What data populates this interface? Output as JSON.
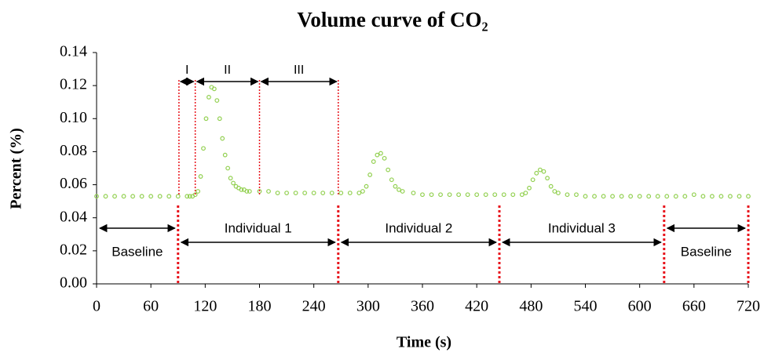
{
  "chart_data": {
    "type": "scatter",
    "title": "Volume curve of CO₂",
    "x_label": "Time (s)",
    "y_label": "Percent (%)",
    "color": "#92d050",
    "xlim": [
      0,
      720
    ],
    "xticks": [
      0,
      60,
      120,
      180,
      240,
      300,
      360,
      420,
      480,
      540,
      600,
      660,
      720
    ],
    "ylim": [
      0,
      0.14
    ],
    "yticks": [
      {
        "value": 0,
        "label": "0.00"
      },
      0.02,
      0.04,
      0.06,
      0.08,
      {
        "value": 0.1,
        "label": "0.10"
      },
      0.12,
      0.14
    ],
    "x": [
      0,
      10,
      20,
      30,
      40,
      50,
      60,
      70,
      80,
      90,
      100,
      103,
      106,
      109,
      112,
      115,
      118,
      121,
      124,
      127,
      130,
      133,
      136,
      139,
      142,
      145,
      148,
      151,
      154,
      157,
      160,
      163,
      166,
      169,
      180,
      190,
      200,
      210,
      220,
      230,
      240,
      250,
      260,
      270,
      280,
      290,
      294,
      298,
      302,
      306,
      310,
      314,
      318,
      322,
      326,
      330,
      334,
      338,
      350,
      360,
      370,
      380,
      390,
      400,
      410,
      420,
      430,
      440,
      450,
      460,
      470,
      474,
      478,
      482,
      486,
      490,
      494,
      498,
      502,
      506,
      510,
      520,
      530,
      540,
      550,
      560,
      570,
      580,
      590,
      600,
      610,
      620,
      630,
      640,
      650,
      660,
      670,
      680,
      690,
      700,
      710,
      720
    ],
    "values": [
      0.053,
      0.053,
      0.053,
      0.053,
      0.053,
      0.053,
      0.053,
      0.053,
      0.053,
      0.053,
      0.053,
      0.053,
      0.053,
      0.054,
      0.056,
      0.065,
      0.082,
      0.1,
      0.113,
      0.119,
      0.118,
      0.111,
      0.1,
      0.088,
      0.078,
      0.07,
      0.064,
      0.061,
      0.059,
      0.058,
      0.057,
      0.057,
      0.056,
      0.056,
      0.056,
      0.056,
      0.055,
      0.055,
      0.055,
      0.055,
      0.055,
      0.055,
      0.055,
      0.055,
      0.055,
      0.055,
      0.056,
      0.059,
      0.066,
      0.074,
      0.078,
      0.079,
      0.076,
      0.069,
      0.063,
      0.059,
      0.057,
      0.056,
      0.055,
      0.054,
      0.054,
      0.054,
      0.054,
      0.054,
      0.054,
      0.054,
      0.054,
      0.054,
      0.054,
      0.054,
      0.054,
      0.055,
      0.058,
      0.063,
      0.067,
      0.069,
      0.068,
      0.064,
      0.059,
      0.056,
      0.055,
      0.054,
      0.054,
      0.053,
      0.053,
      0.053,
      0.053,
      0.053,
      0.053,
      0.053,
      0.053,
      0.053,
      0.053,
      0.053,
      0.053,
      0.054,
      0.053,
      0.053,
      0.053,
      0.053,
      0.053,
      0.053
    ],
    "segments": [
      {
        "label": "Baseline",
        "start": 0,
        "end": 90
      },
      {
        "label": "Individual 1",
        "start": 90,
        "end": 267
      },
      {
        "label": "Individual 2",
        "start": 267,
        "end": 445
      },
      {
        "label": "Individual 3",
        "start": 445,
        "end": 627
      },
      {
        "label": "Baseline",
        "start": 627,
        "end": 720
      }
    ],
    "phases": [
      {
        "label": "I",
        "start": 91,
        "end": 109
      },
      {
        "label": "II",
        "start": 109,
        "end": 180
      },
      {
        "label": "III",
        "start": 180,
        "end": 267
      }
    ]
  }
}
